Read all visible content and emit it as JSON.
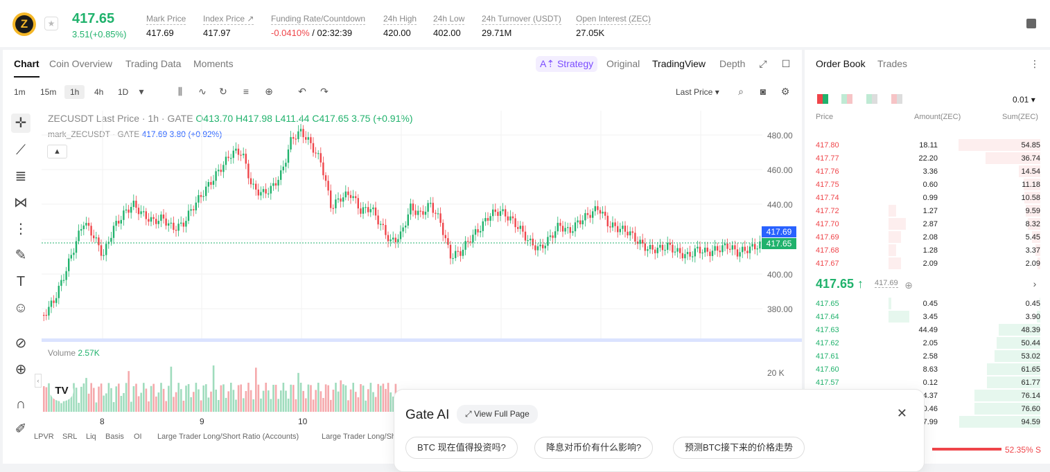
{
  "ticker": {
    "last": "417.65",
    "change": "3.51(+0.85%)",
    "stats": [
      {
        "label": "Mark Price",
        "value": "417.69"
      },
      {
        "label": "Index Price ↗",
        "value": "417.97"
      },
      {
        "label": "Funding Rate/Countdown",
        "rate": "-0.0410%",
        "countdown": "/ 02:32:39"
      },
      {
        "label": "24h High",
        "value": "420.00"
      },
      {
        "label": "24h Low",
        "value": "402.00"
      },
      {
        "label": "24h Turnover (USDT)",
        "value": "29.71M"
      },
      {
        "label": "Open Interest (ZEC)",
        "value": "27.05K"
      }
    ]
  },
  "chart_tabs": [
    "Chart",
    "Coin Overview",
    "Trading Data",
    "Moments"
  ],
  "view_tabs": {
    "strategy": "Strategy",
    "original": "Original",
    "tradingview": "TradingView",
    "depth": "Depth"
  },
  "timeframes": [
    "1m",
    "15m",
    "1h",
    "4h",
    "1D"
  ],
  "price_type": "Last Price ▾",
  "legend": {
    "symbol": "ZECUSDT Last Price · 1h · GATE",
    "o": "O413.70",
    "h": "H417.98",
    "l": "L411.44",
    "c": "C417.65",
    "chg": "3.75 (+0.91%)",
    "mark": "mark_ZECUSDT · GATE",
    "mark_val": "417.69",
    "mark_chg": "3.80 (+0.92%)"
  },
  "y_axis": [
    "480.00",
    "460.00",
    "440.00",
    "420.00",
    "400.00",
    "380.00"
  ],
  "price_labels": {
    "mark": "417.69",
    "last": "417.65"
  },
  "volume": {
    "label": "Volume",
    "value": "2.57K",
    "axis": "20 K"
  },
  "x_axis": [
    "8",
    "9",
    "10"
  ],
  "bottom_tabs": [
    "LPVR",
    "SRL",
    "Liq",
    "Basis",
    "OI",
    "Large Trader Long/Short Ratio (Accounts)",
    "Large Trader Long/Sh"
  ],
  "orderbook": {
    "tabs": [
      "Order Book",
      "Trades"
    ],
    "precision": "0.01 ▾",
    "headers": {
      "price": "Price",
      "amount": "Amount(ZEC)",
      "sum": "Sum(ZEC)"
    },
    "asks": [
      [
        "417.80",
        "18.11",
        "54.85"
      ],
      [
        "417.77",
        "22.20",
        "36.74"
      ],
      [
        "417.76",
        "3.36",
        "14.54"
      ],
      [
        "417.75",
        "0.60",
        "11.18"
      ],
      [
        "417.74",
        "0.99",
        "10.58"
      ],
      [
        "417.72",
        "1.27",
        "9.59"
      ],
      [
        "417.70",
        "2.87",
        "8.32"
      ],
      [
        "417.69",
        "2.08",
        "5.45"
      ],
      [
        "417.68",
        "1.28",
        "3.37"
      ],
      [
        "417.67",
        "2.09",
        "2.09"
      ]
    ],
    "mid": "417.65 ↑",
    "mid_mark": "417.69",
    "bids": [
      [
        "417.65",
        "0.45",
        "0.45"
      ],
      [
        "417.64",
        "3.45",
        "3.90"
      ],
      [
        "417.63",
        "44.49",
        "48.39"
      ],
      [
        "417.62",
        "2.05",
        "50.44"
      ],
      [
        "417.61",
        "2.58",
        "53.02"
      ],
      [
        "417.60",
        "8.63",
        "61.65"
      ],
      [
        "417.57",
        "0.12",
        "61.77"
      ],
      [
        "",
        "14.37",
        "76.14"
      ],
      [
        "",
        "0.46",
        "76.60"
      ],
      [
        "",
        "17.99",
        "94.59"
      ]
    ],
    "ratio": "52.35% S"
  },
  "ai": {
    "title": "Gate AI",
    "full": "View Full Page",
    "chips": [
      "BTC 现在值得投资吗?",
      "降息对币价有什么影响?",
      "预测BTC接下来的价格走势"
    ]
  }
}
